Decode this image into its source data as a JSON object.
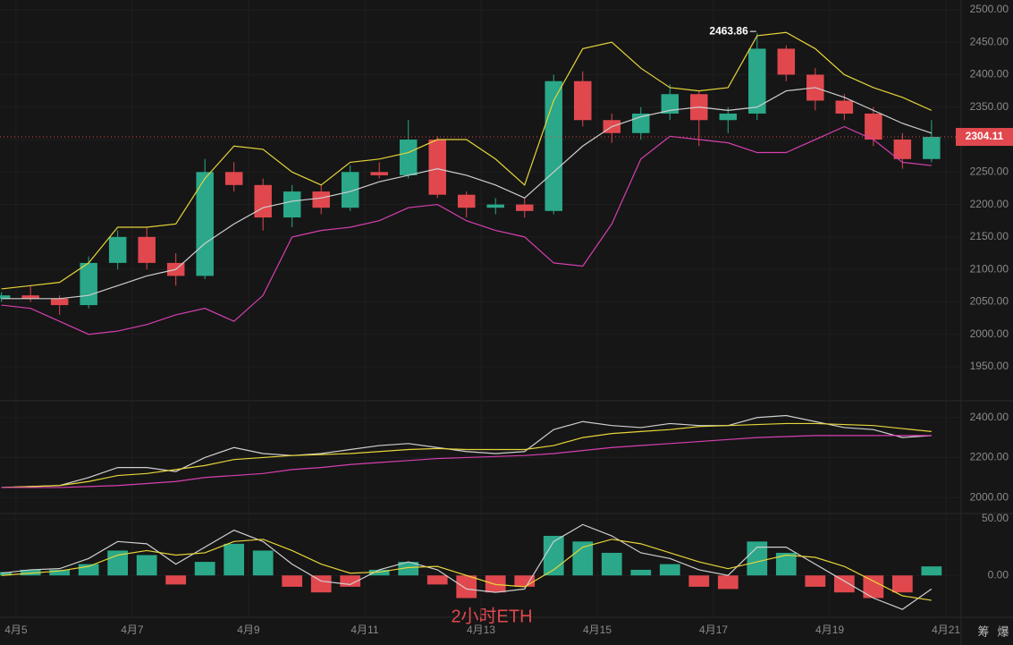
{
  "chart_data": [
    {
      "type": "candlestick",
      "up_color": "#2aa889",
      "down_color": "#e0484e",
      "xlim": [
        -0.05,
        33.02
      ],
      "xticks": [
        {
          "value": 0.5,
          "label": "4月5"
        },
        {
          "value": 4.5,
          "label": "4月7"
        },
        {
          "value": 8.5,
          "label": "4月9"
        },
        {
          "value": 12.5,
          "label": "4月11"
        },
        {
          "value": 16.5,
          "label": "4月13"
        },
        {
          "value": 20.5,
          "label": "4月15"
        },
        {
          "value": 24.5,
          "label": "4月17"
        },
        {
          "value": 28.5,
          "label": "4月19"
        },
        {
          "value": 32.5,
          "label": "4月21"
        }
      ],
      "ylim": [
        1899,
        2515
      ],
      "yticks": [
        {
          "value": 1950,
          "label": "1950.00"
        },
        {
          "value": 2000,
          "label": "2000.00"
        },
        {
          "value": 2050,
          "label": "2050.00"
        },
        {
          "value": 2100,
          "label": "2100.00"
        },
        {
          "value": 2150,
          "label": "2150.00"
        },
        {
          "value": 2200,
          "label": "2200.00"
        },
        {
          "value": 2250,
          "label": "2250.00"
        },
        {
          "value": 2300,
          "label": "2300.00"
        },
        {
          "value": 2350,
          "label": "2350.00"
        },
        {
          "value": 2400,
          "label": "2400.00"
        },
        {
          "value": 2450,
          "label": "2450.00"
        },
        {
          "value": 2500,
          "label": "2500.00"
        }
      ],
      "open": [
        2055,
        2060,
        2055,
        2045,
        2110,
        2150,
        2110,
        2090,
        2250,
        2230,
        2180,
        2220,
        2195,
        2250,
        2245,
        2300,
        2215,
        2195,
        2200,
        2190,
        2390,
        2330,
        2310,
        2340,
        2370,
        2330,
        2340,
        2440,
        2400,
        2360,
        2340,
        2300,
        2270
      ],
      "high": [
        2065,
        2075,
        2060,
        2120,
        2160,
        2165,
        2125,
        2270,
        2265,
        2240,
        2230,
        2230,
        2260,
        2265,
        2330,
        2305,
        2220,
        2210,
        2210,
        2400,
        2405,
        2340,
        2350,
        2385,
        2375,
        2350,
        2463.86,
        2445,
        2410,
        2370,
        2350,
        2310,
        2330
      ],
      "low": [
        2050,
        2050,
        2030,
        2040,
        2100,
        2100,
        2075,
        2085,
        2220,
        2160,
        2165,
        2185,
        2190,
        2240,
        2240,
        2210,
        2180,
        2185,
        2180,
        2185,
        2320,
        2295,
        2300,
        2330,
        2290,
        2310,
        2330,
        2390,
        2345,
        2330,
        2290,
        2255,
        2265
      ],
      "close": [
        2060,
        2055,
        2045,
        2110,
        2150,
        2110,
        2090,
        2250,
        2230,
        2180,
        2220,
        2195,
        2250,
        2245,
        2300,
        2215,
        2195,
        2200,
        2190,
        2390,
        2330,
        2310,
        2340,
        2370,
        2330,
        2340,
        2440,
        2400,
        2360,
        2340,
        2300,
        2270,
        2304.11
      ],
      "series": [
        {
          "color": "#e6d43a",
          "values": [
            2070,
            2075,
            2080,
            2110,
            2165,
            2165,
            2170,
            2240,
            2290,
            2285,
            2250,
            2230,
            2265,
            2270,
            2280,
            2300,
            2300,
            2270,
            2230,
            2360,
            2440,
            2450,
            2410,
            2380,
            2375,
            2380,
            2460,
            2465,
            2440,
            2400,
            2380,
            2365,
            2345
          ]
        },
        {
          "color": "#cfcfcf",
          "values": [
            2055,
            2055,
            2055,
            2060,
            2075,
            2090,
            2100,
            2140,
            2170,
            2195,
            2205,
            2210,
            2220,
            2235,
            2245,
            2255,
            2245,
            2230,
            2210,
            2250,
            2290,
            2320,
            2335,
            2345,
            2350,
            2345,
            2350,
            2375,
            2380,
            2365,
            2345,
            2325,
            2310
          ]
        },
        {
          "color": "#d63fb0",
          "values": [
            2045,
            2040,
            2020,
            2000,
            2005,
            2015,
            2030,
            2040,
            2020,
            2060,
            2150,
            2160,
            2165,
            2175,
            2195,
            2200,
            2175,
            2160,
            2150,
            2110,
            2105,
            2170,
            2270,
            2305,
            2300,
            2295,
            2280,
            2280,
            2300,
            2320,
            2300,
            2265,
            2260
          ]
        }
      ],
      "high_marker": {
        "value": 2463.86,
        "label": "2463.86"
      },
      "last_price": {
        "value": 2304.11,
        "label": "2304.11"
      }
    },
    {
      "type": "line",
      "ylim": [
        1920,
        2475
      ],
      "yticks": [
        {
          "value": 2000,
          "label": "2000.00"
        },
        {
          "value": 2200,
          "label": "2200.00"
        },
        {
          "value": 2400,
          "label": "2400.00"
        }
      ],
      "series": [
        {
          "color": "#cfcfcf",
          "values": [
            2050,
            2055,
            2060,
            2100,
            2150,
            2150,
            2130,
            2200,
            2250,
            2220,
            2210,
            2220,
            2240,
            2260,
            2270,
            2250,
            2230,
            2220,
            2230,
            2340,
            2380,
            2360,
            2350,
            2370,
            2360,
            2360,
            2400,
            2410,
            2380,
            2350,
            2340,
            2300,
            2310
          ]
        },
        {
          "color": "#e6d43a",
          "values": [
            2050,
            2055,
            2060,
            2080,
            2110,
            2120,
            2140,
            2160,
            2190,
            2200,
            2210,
            2215,
            2220,
            2230,
            2240,
            2245,
            2240,
            2240,
            2240,
            2260,
            2300,
            2320,
            2330,
            2340,
            2355,
            2360,
            2365,
            2370,
            2370,
            2365,
            2360,
            2345,
            2330
          ]
        },
        {
          "color": "#d63fb0",
          "values": [
            2050,
            2050,
            2050,
            2055,
            2060,
            2070,
            2080,
            2100,
            2110,
            2120,
            2140,
            2150,
            2165,
            2175,
            2185,
            2195,
            2200,
            2205,
            2210,
            2220,
            2235,
            2250,
            2260,
            2270,
            2280,
            2290,
            2300,
            2305,
            2310,
            2310,
            2310,
            2310,
            2310
          ]
        }
      ]
    },
    {
      "type": "macd",
      "up_color": "#2aa889",
      "down_color": "#e0484e",
      "ylim": [
        -37,
        54
      ],
      "yticks": [
        {
          "value": 0,
          "label": "0.00"
        },
        {
          "value": 50,
          "label": "50.00"
        }
      ],
      "values": [
        3,
        5,
        5,
        10,
        22,
        18,
        -8,
        12,
        28,
        22,
        -10,
        -15,
        -10,
        5,
        12,
        -8,
        -20,
        -15,
        -10,
        35,
        30,
        20,
        5,
        10,
        -10,
        -12,
        30,
        20,
        -10,
        -15,
        -20,
        -15,
        8
      ],
      "series": [
        {
          "color": "#cfcfcf",
          "values": [
            2,
            5,
            6,
            15,
            30,
            28,
            10,
            25,
            40,
            30,
            10,
            -5,
            -8,
            5,
            12,
            5,
            -12,
            -15,
            -12,
            30,
            45,
            35,
            20,
            15,
            5,
            0,
            25,
            25,
            10,
            -5,
            -20,
            -30,
            -12
          ]
        },
        {
          "color": "#e6d43a",
          "values": [
            0,
            2,
            4,
            8,
            18,
            22,
            18,
            20,
            30,
            32,
            22,
            10,
            2,
            3,
            7,
            8,
            0,
            -8,
            -10,
            5,
            25,
            32,
            28,
            20,
            12,
            6,
            12,
            18,
            16,
            8,
            -5,
            -18,
            -22
          ]
        }
      ]
    }
  ],
  "ui": {
    "watermark": "2小时ETH",
    "corner_icons": [
      "筹",
      "爆"
    ]
  }
}
